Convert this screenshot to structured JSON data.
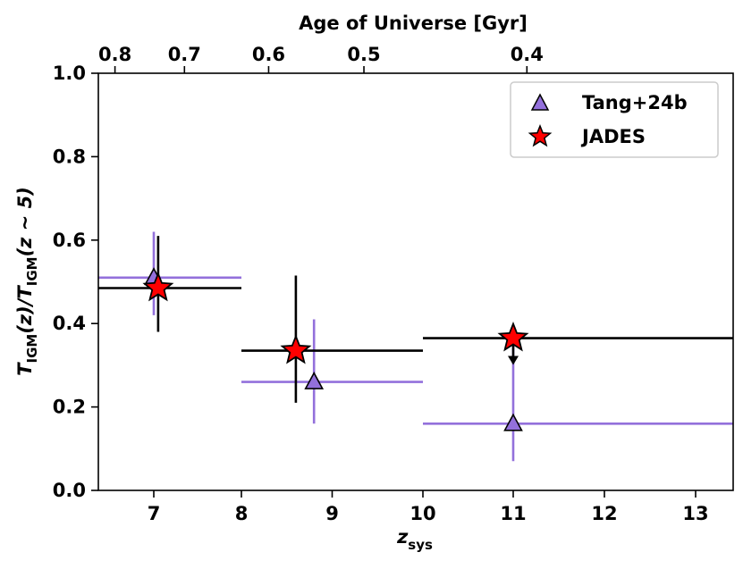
{
  "chart_data": {
    "type": "scatter",
    "x_axis": {
      "label_main": "z",
      "label_sub": "sys",
      "breaks": [
        6.5,
        7,
        8,
        10,
        11,
        13,
        13.3
      ],
      "ticks": [
        {
          "value": 7,
          "label": "7"
        },
        {
          "value": 8,
          "label": "8"
        },
        {
          "value": 9,
          "label": "9"
        },
        {
          "value": 10,
          "label": "10"
        },
        {
          "value": 11,
          "label": "11"
        },
        {
          "value": 12,
          "label": "12"
        },
        {
          "value": 13,
          "label": "13"
        }
      ]
    },
    "top_axis": {
      "label": "Age of Universe [Gyr]",
      "ticks": [
        {
          "z": 6.65,
          "label": "0.8"
        },
        {
          "z": 7.35,
          "label": "0.7"
        },
        {
          "z": 8.3,
          "label": "0.6"
        },
        {
          "z": 9.35,
          "label": "0.5"
        },
        {
          "z": 11.15,
          "label": "0.4"
        }
      ]
    },
    "y_axis": {
      "label_pre": "T",
      "label_sub1": "IGM",
      "label_mid": "(z)/",
      "label_t2": "T",
      "label_sub2": "IGM",
      "label_post": "(z ~ 5)",
      "ylim": [
        0,
        1.0
      ],
      "ticks": [
        {
          "value": 0.0,
          "label": "0.0"
        },
        {
          "value": 0.2,
          "label": "0.2"
        },
        {
          "value": 0.4,
          "label": "0.4"
        },
        {
          "value": 0.6,
          "label": "0.6"
        },
        {
          "value": 0.8,
          "label": "0.8"
        },
        {
          "value": 1.0,
          "label": "1.0"
        }
      ]
    },
    "series": [
      {
        "name": "Tang+24b",
        "marker": "triangle",
        "color": "#9370DB",
        "points": [
          {
            "x": 7.0,
            "y": 0.51,
            "xerr": [
              6.5,
              8.0
            ],
            "yerr": [
              0.42,
              0.62
            ],
            "upper_limit": false
          },
          {
            "x": 8.8,
            "y": 0.26,
            "xerr": [
              8.0,
              10.0
            ],
            "yerr": [
              0.16,
              0.41
            ],
            "upper_limit": false
          },
          {
            "x": 11.0,
            "y": 0.16,
            "xerr": [
              10.0,
              13.3
            ],
            "yerr": [
              0.07,
              0.36
            ],
            "upper_limit": false
          }
        ]
      },
      {
        "name": "JADES",
        "marker": "star",
        "color": "#FF0000",
        "points": [
          {
            "x": 7.05,
            "y": 0.485,
            "xerr": [
              6.5,
              8.0
            ],
            "yerr": [
              0.38,
              0.61
            ],
            "upper_limit": false
          },
          {
            "x": 8.6,
            "y": 0.335,
            "xerr": [
              8.0,
              10.0
            ],
            "yerr": [
              0.21,
              0.515
            ],
            "upper_limit": false
          },
          {
            "x": 11.0,
            "y": 0.365,
            "xerr": [
              10.0,
              13.3
            ],
            "yerr": [
              null,
              null
            ],
            "upper_limit": true
          }
        ]
      }
    ],
    "legend": {
      "position": "top-right",
      "entries": [
        "Tang+24b",
        "JADES"
      ]
    }
  }
}
